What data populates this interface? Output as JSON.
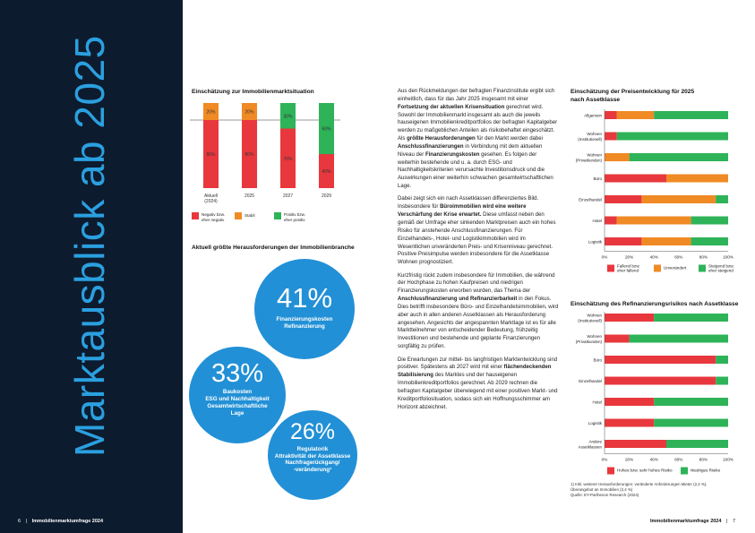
{
  "page": {
    "vertical_title": "Marktausblick ab 2025",
    "footer_left_num": "6",
    "footer_left_title": "Immobilienmarktumfrage 2024",
    "footer_right_title": "Immobilienmarktumfrage 2024",
    "footer_right_num": "7"
  },
  "colors": {
    "red": "#e8383d",
    "orange": "#f08a24",
    "green": "#2eb358",
    "navy": "#0d1b2e",
    "blue": "#2290d6"
  },
  "chart1": {
    "title": "Einschätzung zur Immobilienmarktsituation",
    "categories": [
      "Aktuell (2024)",
      "2025",
      "2027",
      "2029"
    ],
    "series": [
      {
        "name": "Negativ bzw. eher negativ",
        "values": [
          80,
          80,
          70,
          40
        ],
        "labels": [
          "80%",
          "80%",
          "70%",
          "40%"
        ]
      },
      {
        "name": "Stabil",
        "values": [
          20,
          20,
          0,
          0
        ],
        "labels": [
          "20%",
          "20%",
          "",
          ""
        ]
      },
      {
        "name": "Positiv bzw. eher positiv",
        "values": [
          0,
          0,
          30,
          60
        ],
        "labels": [
          "",
          "",
          "30%",
          "60%"
        ]
      }
    ]
  },
  "challenges": {
    "title": "Aktuell größte Herausforderungen der Immobilienbranche",
    "items": [
      {
        "pct": "41%",
        "label1": "Finanzierungskosten",
        "label2": "Refinanzierung",
        "label3": "",
        "label4": ""
      },
      {
        "pct": "33%",
        "label1": "Baukosten",
        "label2": "ESG und Nachhaltigkeit",
        "label3": "Gesamtwirtschaftliche",
        "label4": "Lage"
      },
      {
        "pct": "26%",
        "label1": "Regulatorik",
        "label2": "Attraktivität der Assetklasse",
        "label3": "Nachfragerückgang/",
        "label4": "-veränderung¹"
      }
    ]
  },
  "body": {
    "p1a": "Aus den Rückmeldungen der befragten Finanzinstitute ergibt sich einheitlich, dass für das Jahr 2025 insgesamt mit einer ",
    "p1b": "Fortsetzung der aktuellen Krisensituation",
    "p1c": " gerechnet wird. Sowohl der Immobilienmarkt insgesamt als auch die jeweils hauseigenen Immobilienkreditportfolios der befragten Kapitalgeber werden zu maßgeblichen Anteilen als risikobehaftet eingeschätzt. Als ",
    "p1d": "größte Herausforderungen",
    "p1e": " für den Markt werden dabei ",
    "p1f": "Anschlussfinanzierungen",
    "p1g": " in Verbindung mit dem aktuellen Niveau der ",
    "p1h": "Finanzierungskosten",
    "p1i": " gesehen. Es folgen der weiterhin bestehende und u. a. durch ESG- und Nachhaltigkeitskriterien verursachte Investitionsdruck und die Auswirkungen einer weiterhin schwachen gesamtwirtschaftlichen Lage.",
    "p2a": "Dabei zeigt sich ein nach Assetklassen differenziertes Bild. Insbesondere für ",
    "p2b": "Büroimmobilien wird eine weitere Verschärfung der Krise erwartet.",
    "p2c": " Diese umfasst neben den gemäß der Umfrage eher sinkenden Marktpreisen auch ein hohes Risiko für anstehende Anschlussfinanzierungen. Für Einzelhandels-, Hotel- und Logistikimmobilien wird im Wesentlichen unveränderten Preis- und Krisenniveau gerechnet. Positive Preisimpulse werden insbesondere für die Assetklasse Wohnen prognostiziert.",
    "p3a": "Kurzfristig rückt zudem insbesondere für Immobilien, die während der Hochphase zu hohen Kaufpreisen und niedrigen Finanzierungskosten erworben wurden, das Thema der ",
    "p3b": "Anschlussfinanzierung und Refinanzierbarkeit",
    "p3c": " in den Fokus. Dies betrifft insbesondere Büro- und Einzelhandelsimmobilien, wird aber auch in allen anderen Assetklassen als Herausforderung angesehen. Angesichts der angespannten Marktlage ist es für alle Marktteilnehmer von entscheidender Bedeutung, frühzeitig Investitionen und bestehende und geplante Finanzierungen sorgfältig zu prüfen.",
    "p4a": "Die Erwartungen zur mittel- bis langfristigen Marktentwicklung sind positiver. Spätestens ab 2027 wird mit einer ",
    "p4b": "flächendeckenden Stabilisierung",
    "p4c": " des Marktes und der hauseigenen Immobilienkreditportfolios gerechnet. Ab 2029 rechnen die befragten Kapitalgeber überwiegend mit einer positiven Markt- und Kreditportfoliosituation, sodass sich ein Hoffnungsschimmer am Horizont abzeichnet."
  },
  "chart2": {
    "title1": "Einschätzung der Preisentwicklung für 2025",
    "title2": "nach Assetklasse",
    "type": "bar",
    "categories": [
      "Allgemein",
      "Wohnen (Institutionell)",
      "Wohnen (Privatkunden)",
      "Büro",
      "Einzelhandel",
      "Hotel",
      "Logistik"
    ],
    "cat_lines": [
      [
        "Allgemein"
      ],
      [
        "Wohnen",
        "(Institutionell)"
      ],
      [
        "Wohnen",
        "(Privatkunden)"
      ],
      [
        "Büro"
      ],
      [
        "Einzelhandel"
      ],
      [
        "Hotel"
      ],
      [
        "Logistik"
      ]
    ],
    "series": [
      {
        "name": "Fallend bzw. eher fallend",
        "values": [
          10,
          10,
          0,
          50,
          30,
          10,
          30
        ]
      },
      {
        "name": "Unverändert",
        "values": [
          30,
          0,
          20,
          50,
          60,
          60,
          40
        ]
      },
      {
        "name": "Steigend bzw. eher steigend",
        "values": [
          60,
          90,
          80,
          0,
          10,
          30,
          30
        ]
      }
    ],
    "ticks": [
      "0%",
      "20%",
      "40%",
      "60%",
      "80%",
      "100%"
    ],
    "legend": [
      "Fallend bzw.|eher fallend",
      "Unverändert",
      "Steigend bzw.|eher steigend"
    ]
  },
  "chart3": {
    "title": "Einschätzung des Refinanzierungsrisikos nach Assetklasse",
    "type": "bar",
    "categories": [
      "Wohnen (Institutionell)",
      "Wohnen (Privatkunden)",
      "Büro",
      "Einzelhandel",
      "Hotel",
      "Logistik",
      "Andere Assetklassen"
    ],
    "cat_lines": [
      [
        "Wohnen",
        "(Institutionell)"
      ],
      [
        "Wohnen",
        "(Privatkunden)"
      ],
      [
        "Büro"
      ],
      [
        "Einzelhandel"
      ],
      [
        "Hotel"
      ],
      [
        "Logistik"
      ],
      [
        "Andere",
        "Assetklassen"
      ]
    ],
    "series": [
      {
        "name": "Hohes bzw. sehr hohes Risiko",
        "values": [
          40,
          20,
          90,
          90,
          40,
          40,
          50
        ]
      },
      {
        "name": "Niedriges Risiko",
        "values": [
          60,
          80,
          10,
          10,
          60,
          60,
          50
        ]
      }
    ],
    "ticks": [
      "0%",
      "20%",
      "40%",
      "60%",
      "80%",
      "100%"
    ]
  },
  "footnote": {
    "line1": "1) Inkl. weiterer Herausforderungen: veränderte Anforderungen Mieter (2,4 %),",
    "line2": "Überangebot an Immobilien (2,4 %)",
    "source": "Quelle: EY-Parthenon Research (2024)"
  }
}
